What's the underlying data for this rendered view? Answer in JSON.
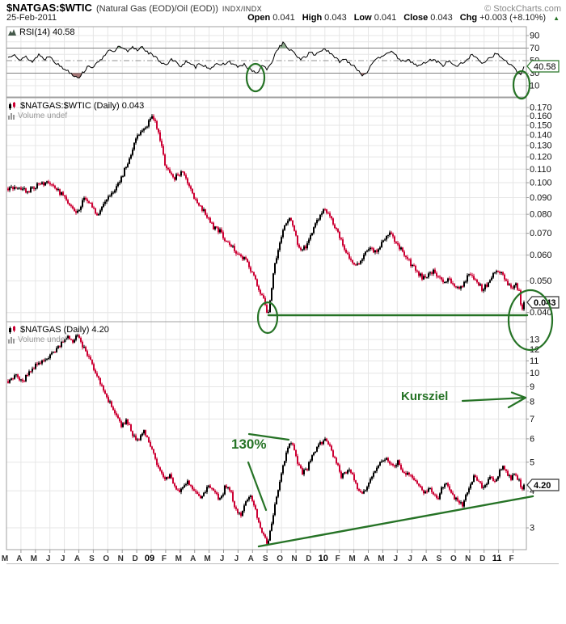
{
  "header": {
    "symbol": "$NATGAS:$WTIC",
    "description": "(Natural Gas (EOD)/Oil (EOD))",
    "exchange": "INDX/INDX",
    "copyright": "© StockCharts.com",
    "date": "25-Feb-2011",
    "quote": {
      "open_label": "Open",
      "open": "0.041",
      "high_label": "High",
      "high": "0.043",
      "low_label": "Low",
      "low": "0.041",
      "close_label": "Close",
      "close": "0.043",
      "chg_label": "Chg",
      "chg": "+0.003 (+8.10%)",
      "chg_arrow": "▲"
    }
  },
  "colors": {
    "up": "#000000",
    "down": "#cc0033",
    "annotation": "#267326",
    "grid": "#e6e6e6",
    "panel_border": "#a0a0a0",
    "rsi_band_line": "#808080",
    "overbought_fill": "#8fae8f",
    "oversold_fill": "#a57878",
    "muted": "#999999"
  },
  "panels": {
    "rsi": {
      "title": "RSI(14) 40.58",
      "value_box": "40.58"
    },
    "main": {
      "title": "$NATGAS:$WTIC (Daily) 0.043",
      "volume_label": "Volume undef",
      "value_box": "0.043"
    },
    "ng": {
      "title": "$NATGAS (Daily) 4.20",
      "volume_label": "Volume undef",
      "value_box": "4.20"
    }
  },
  "annotations": {
    "pct_label": "130%",
    "kursziel_label": "Kursziel"
  },
  "x_axis": {
    "labels": [
      "M",
      "A",
      "M",
      "J",
      "J",
      "A",
      "S",
      "O",
      "N",
      "D",
      "09",
      "F",
      "M",
      "A",
      "M",
      "J",
      "J",
      "A",
      "S",
      "O",
      "N",
      "D",
      "10",
      "F",
      "M",
      "A",
      "M",
      "J",
      "J",
      "A",
      "S",
      "O",
      "N",
      "D",
      "11",
      "F"
    ],
    "year_indices": [
      10,
      22,
      34
    ]
  },
  "chart_data": [
    {
      "type": "line",
      "panel": "rsi",
      "title": "RSI(14) 40.58",
      "last_value": 40.58,
      "ylim": [
        0,
        100
      ],
      "yticks": [
        90,
        70,
        50,
        30,
        10
      ],
      "ytick_labels": [
        "90",
        "70",
        "50",
        "30",
        "10"
      ],
      "overbought": 70,
      "oversold": 30,
      "midline": 50,
      "anchors": [
        [
          10,
          55
        ],
        [
          18,
          62
        ],
        [
          25,
          50
        ],
        [
          32,
          56
        ],
        [
          40,
          48
        ],
        [
          48,
          60
        ],
        [
          55,
          52
        ],
        [
          62,
          58
        ],
        [
          70,
          45
        ],
        [
          78,
          38
        ],
        [
          85,
          33
        ],
        [
          92,
          26
        ],
        [
          98,
          24
        ],
        [
          104,
          33
        ],
        [
          110,
          43
        ],
        [
          116,
          38
        ],
        [
          122,
          50
        ],
        [
          128,
          56
        ],
        [
          134,
          68
        ],
        [
          140,
          62
        ],
        [
          146,
          72
        ],
        [
          152,
          69
        ],
        [
          158,
          64
        ],
        [
          164,
          71
        ],
        [
          170,
          67
        ],
        [
          176,
          73
        ],
        [
          182,
          64
        ],
        [
          188,
          59
        ],
        [
          194,
          53
        ],
        [
          200,
          47
        ],
        [
          206,
          44
        ],
        [
          212,
          52
        ],
        [
          218,
          46
        ],
        [
          224,
          42
        ],
        [
          230,
          48
        ],
        [
          236,
          43
        ],
        [
          242,
          40
        ],
        [
          248,
          46
        ],
        [
          254,
          41
        ],
        [
          260,
          38
        ],
        [
          266,
          44
        ],
        [
          272,
          41
        ],
        [
          278,
          46
        ],
        [
          284,
          48
        ],
        [
          290,
          43
        ],
        [
          296,
          40
        ],
        [
          302,
          43
        ],
        [
          308,
          37
        ],
        [
          314,
          32
        ],
        [
          318,
          30
        ],
        [
          322,
          37
        ],
        [
          326,
          43
        ],
        [
          330,
          34
        ],
        [
          335,
          45
        ],
        [
          340,
          60
        ],
        [
          345,
          72
        ],
        [
          350,
          78
        ],
        [
          355,
          71
        ],
        [
          360,
          66
        ],
        [
          366,
          58
        ],
        [
          372,
          53
        ],
        [
          378,
          57
        ],
        [
          384,
          63
        ],
        [
          390,
          59
        ],
        [
          396,
          66
        ],
        [
          402,
          69
        ],
        [
          408,
          61
        ],
        [
          414,
          55
        ],
        [
          420,
          49
        ],
        [
          426,
          53
        ],
        [
          432,
          47
        ],
        [
          438,
          42
        ],
        [
          444,
          33
        ],
        [
          448,
          27
        ],
        [
          453,
          31
        ],
        [
          458,
          40
        ],
        [
          464,
          49
        ],
        [
          470,
          56
        ],
        [
          476,
          61
        ],
        [
          482,
          65
        ],
        [
          488,
          59
        ],
        [
          494,
          53
        ],
        [
          500,
          47
        ],
        [
          506,
          51
        ],
        [
          512,
          45
        ],
        [
          518,
          41
        ],
        [
          524,
          46
        ],
        [
          530,
          49
        ],
        [
          536,
          53
        ],
        [
          542,
          47
        ],
        [
          548,
          43
        ],
        [
          554,
          49
        ],
        [
          560,
          45
        ],
        [
          566,
          41
        ],
        [
          572,
          46
        ],
        [
          578,
          53
        ],
        [
          584,
          59
        ],
        [
          590,
          53
        ],
        [
          596,
          47
        ],
        [
          602,
          51
        ],
        [
          608,
          57
        ],
        [
          614,
          61
        ],
        [
          620,
          55
        ],
        [
          626,
          49
        ],
        [
          632,
          43
        ],
        [
          638,
          34
        ],
        [
          643,
          26
        ],
        [
          646,
          33
        ],
        [
          648,
          40.58
        ]
      ]
    },
    {
      "type": "candlestick",
      "panel": "main",
      "title": "$NATGAS:$WTIC (Daily)",
      "scale": "log",
      "last_value": 0.043,
      "yticks": [
        0.17,
        0.16,
        0.15,
        0.14,
        0.13,
        0.12,
        0.11,
        0.1,
        0.09,
        0.08,
        0.07,
        0.06,
        0.05,
        0.04
      ],
      "ytick_labels": [
        "0.170",
        "0.160",
        "0.150",
        "0.140",
        "0.130",
        "0.120",
        "0.110",
        "0.100",
        "0.090",
        "0.080",
        "0.070",
        "0.060",
        "0.050",
        "0.040"
      ],
      "anchors": [
        [
          10,
          0.096
        ],
        [
          22,
          0.098
        ],
        [
          34,
          0.094
        ],
        [
          46,
          0.098
        ],
        [
          58,
          0.1
        ],
        [
          68,
          0.096
        ],
        [
          78,
          0.091
        ],
        [
          88,
          0.084
        ],
        [
          96,
          0.081
        ],
        [
          104,
          0.089
        ],
        [
          112,
          0.086
        ],
        [
          120,
          0.079
        ],
        [
          128,
          0.086
        ],
        [
          136,
          0.091
        ],
        [
          144,
          0.098
        ],
        [
          152,
          0.106
        ],
        [
          160,
          0.118
        ],
        [
          168,
          0.136
        ],
        [
          176,
          0.146
        ],
        [
          182,
          0.151
        ],
        [
          188,
          0.162
        ],
        [
          192,
          0.152
        ],
        [
          197,
          0.14
        ],
        [
          203,
          0.116
        ],
        [
          209,
          0.108
        ],
        [
          215,
          0.103
        ],
        [
          221,
          0.106
        ],
        [
          227,
          0.109
        ],
        [
          233,
          0.099
        ],
        [
          240,
          0.09
        ],
        [
          248,
          0.084
        ],
        [
          256,
          0.079
        ],
        [
          264,
          0.073
        ],
        [
          272,
          0.071
        ],
        [
          280,
          0.066
        ],
        [
          288,
          0.063
        ],
        [
          296,
          0.06
        ],
        [
          303,
          0.058
        ],
        [
          309,
          0.055
        ],
        [
          315,
          0.051
        ],
        [
          321,
          0.047
        ],
        [
          327,
          0.043
        ],
        [
          331,
          0.0385
        ],
        [
          335,
          0.046
        ],
        [
          340,
          0.056
        ],
        [
          346,
          0.066
        ],
        [
          352,
          0.074
        ],
        [
          358,
          0.079
        ],
        [
          363,
          0.072
        ],
        [
          368,
          0.065
        ],
        [
          373,
          0.062
        ],
        [
          378,
          0.064
        ],
        [
          384,
          0.069
        ],
        [
          390,
          0.074
        ],
        [
          396,
          0.079
        ],
        [
          401,
          0.084
        ],
        [
          406,
          0.081
        ],
        [
          411,
          0.076
        ],
        [
          418,
          0.07
        ],
        [
          425,
          0.063
        ],
        [
          432,
          0.058
        ],
        [
          439,
          0.056
        ],
        [
          446,
          0.057
        ],
        [
          452,
          0.061
        ],
        [
          458,
          0.064
        ],
        [
          464,
          0.061
        ],
        [
          470,
          0.064
        ],
        [
          476,
          0.067
        ],
        [
          482,
          0.07
        ],
        [
          488,
          0.067
        ],
        [
          495,
          0.063
        ],
        [
          502,
          0.059
        ],
        [
          509,
          0.056
        ],
        [
          516,
          0.053
        ],
        [
          523,
          0.051
        ],
        [
          530,
          0.052
        ],
        [
          537,
          0.054
        ],
        [
          543,
          0.051
        ],
        [
          549,
          0.049
        ],
        [
          555,
          0.051
        ],
        [
          561,
          0.049
        ],
        [
          567,
          0.047
        ],
        [
          573,
          0.049
        ],
        [
          579,
          0.052
        ],
        [
          585,
          0.051
        ],
        [
          591,
          0.049
        ],
        [
          597,
          0.047
        ],
        [
          603,
          0.049
        ],
        [
          609,
          0.052
        ],
        [
          615,
          0.054
        ],
        [
          621,
          0.052
        ],
        [
          627,
          0.049
        ],
        [
          633,
          0.047
        ],
        [
          638,
          0.049
        ],
        [
          642,
          0.046
        ],
        [
          645,
          0.0405
        ],
        [
          648,
          0.043
        ]
      ]
    },
    {
      "type": "candlestick",
      "panel": "ng",
      "title": "$NATGAS (Daily)",
      "scale": "log",
      "last_value": 4.2,
      "yticks": [
        13,
        12,
        11,
        10,
        9,
        8,
        7,
        6,
        5,
        4,
        3
      ],
      "ytick_labels": [
        "13",
        "12",
        "11",
        "10",
        "9",
        "8",
        "7",
        "6",
        "5",
        "4",
        "3"
      ],
      "anchors": [
        [
          10,
          9.4
        ],
        [
          20,
          9.9
        ],
        [
          28,
          9.3
        ],
        [
          36,
          10.1
        ],
        [
          44,
          10.6
        ],
        [
          52,
          10.9
        ],
        [
          60,
          11.2
        ],
        [
          68,
          11.9
        ],
        [
          76,
          12.7
        ],
        [
          84,
          13.2
        ],
        [
          90,
          12.8
        ],
        [
          96,
          13.4
        ],
        [
          102,
          12.4
        ],
        [
          110,
          11.2
        ],
        [
          118,
          10.1
        ],
        [
          126,
          9.0
        ],
        [
          134,
          8.1
        ],
        [
          142,
          7.3
        ],
        [
          150,
          6.6
        ],
        [
          157,
          6.9
        ],
        [
          164,
          6.2
        ],
        [
          171,
          5.9
        ],
        [
          178,
          6.4
        ],
        [
          184,
          5.9
        ],
        [
          190,
          5.3
        ],
        [
          196,
          4.8
        ],
        [
          203,
          4.4
        ],
        [
          210,
          4.5
        ],
        [
          217,
          4.1
        ],
        [
          224,
          4.0
        ],
        [
          231,
          4.3
        ],
        [
          238,
          4.1
        ],
        [
          245,
          3.8
        ],
        [
          252,
          3.9
        ],
        [
          259,
          4.2
        ],
        [
          266,
          3.9
        ],
        [
          273,
          3.7
        ],
        [
          279,
          4.2
        ],
        [
          285,
          4.0
        ],
        [
          291,
          3.5
        ],
        [
          297,
          3.3
        ],
        [
          303,
          3.6
        ],
        [
          309,
          3.9
        ],
        [
          315,
          3.5
        ],
        [
          321,
          3.0
        ],
        [
          327,
          2.8
        ],
        [
          331,
          2.6
        ],
        [
          336,
          3.1
        ],
        [
          341,
          3.7
        ],
        [
          346,
          4.3
        ],
        [
          351,
          5.0
        ],
        [
          356,
          5.6
        ],
        [
          360,
          5.9
        ],
        [
          364,
          5.4
        ],
        [
          369,
          4.9
        ],
        [
          374,
          4.6
        ],
        [
          379,
          4.7
        ],
        [
          384,
          5.1
        ],
        [
          390,
          5.5
        ],
        [
          396,
          5.8
        ],
        [
          402,
          6.0
        ],
        [
          407,
          5.7
        ],
        [
          412,
          5.3
        ],
        [
          417,
          4.9
        ],
        [
          422,
          4.5
        ],
        [
          427,
          4.6
        ],
        [
          432,
          4.8
        ],
        [
          437,
          4.4
        ],
        [
          442,
          4.1
        ],
        [
          447,
          3.9
        ],
        [
          452,
          4.0
        ],
        [
          457,
          4.3
        ],
        [
          462,
          4.6
        ],
        [
          467,
          4.9
        ],
        [
          472,
          5.1
        ],
        [
          477,
          5.2
        ],
        [
          482,
          5.0
        ],
        [
          487,
          4.8
        ],
        [
          492,
          5.0
        ],
        [
          497,
          4.7
        ],
        [
          502,
          4.5
        ],
        [
          507,
          4.6
        ],
        [
          512,
          4.4
        ],
        [
          517,
          4.2
        ],
        [
          522,
          4.0
        ],
        [
          527,
          3.9
        ],
        [
          532,
          4.1
        ],
        [
          537,
          3.9
        ],
        [
          542,
          3.8
        ],
        [
          547,
          4.1
        ],
        [
          552,
          4.3
        ],
        [
          557,
          4.0
        ],
        [
          562,
          3.8
        ],
        [
          567,
          3.7
        ],
        [
          572,
          3.6
        ],
        [
          577,
          3.9
        ],
        [
          582,
          4.2
        ],
        [
          587,
          4.5
        ],
        [
          592,
          4.3
        ],
        [
          597,
          4.1
        ],
        [
          602,
          4.2
        ],
        [
          607,
          4.5
        ],
        [
          612,
          4.3
        ],
        [
          617,
          4.6
        ],
        [
          622,
          4.8
        ],
        [
          627,
          4.6
        ],
        [
          632,
          4.4
        ],
        [
          637,
          4.6
        ],
        [
          642,
          4.3
        ],
        [
          645,
          4.0
        ],
        [
          648,
          4.2
        ]
      ]
    }
  ]
}
